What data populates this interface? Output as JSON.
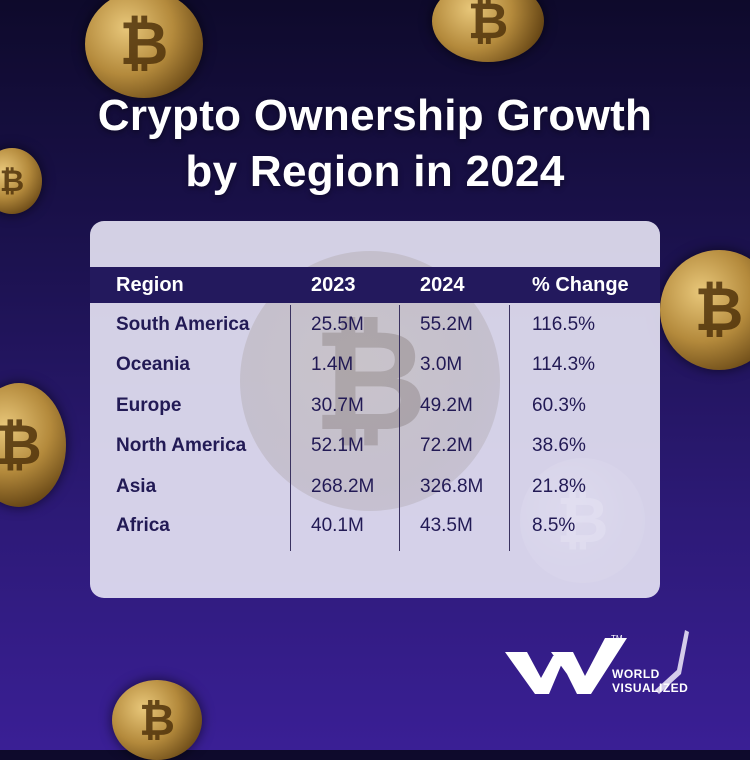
{
  "title_line1": "Crypto Ownership Growth",
  "title_line2": "by Region in 2024",
  "table": {
    "headers": [
      "Region",
      "2023",
      "2024",
      "% Change"
    ],
    "rows": [
      {
        "region": "South America",
        "y2023": "25.5M",
        "y2024": "55.2M",
        "change": "116.5%"
      },
      {
        "region": "Oceania",
        "y2023": "1.4M",
        "y2024": "3.0M",
        "change": "114.3%"
      },
      {
        "region": "Europe",
        "y2023": "30.7M",
        "y2024": "49.2M",
        "change": "60.3%"
      },
      {
        "region": "North America",
        "y2023": "52.1M",
        "y2024": "72.2M",
        "change": "38.6%"
      },
      {
        "region": "Asia",
        "y2023": "268.2M",
        "y2024": "326.8M",
        "change": "21.8%"
      },
      {
        "region": "Africa",
        "y2023": "40.1M",
        "y2024": "43.5M",
        "change": "8.5%"
      }
    ]
  },
  "chart_data": {
    "type": "table",
    "title": "Crypto Ownership Growth by Region in 2024",
    "columns": [
      "Region",
      "2023",
      "2024",
      "% Change"
    ],
    "rows": [
      [
        "South America",
        "25.5M",
        "55.2M",
        "116.5%"
      ],
      [
        "Oceania",
        "1.4M",
        "3.0M",
        "114.3%"
      ],
      [
        "Europe",
        "30.7M",
        "49.2M",
        "60.3%"
      ],
      [
        "North America",
        "52.1M",
        "72.2M",
        "38.6%"
      ],
      [
        "Asia",
        "268.2M",
        "326.8M",
        "21.8%"
      ],
      [
        "Africa",
        "40.1M",
        "43.5M",
        "8.5%"
      ]
    ]
  },
  "brand": {
    "line1": "WORLD",
    "line2": "VISUALIZED",
    "tm": "TM"
  },
  "colors": {
    "header_bg": "#23195d",
    "text_dark": "#221a55",
    "background": "#1c1250"
  },
  "coin_symbol": "₿"
}
